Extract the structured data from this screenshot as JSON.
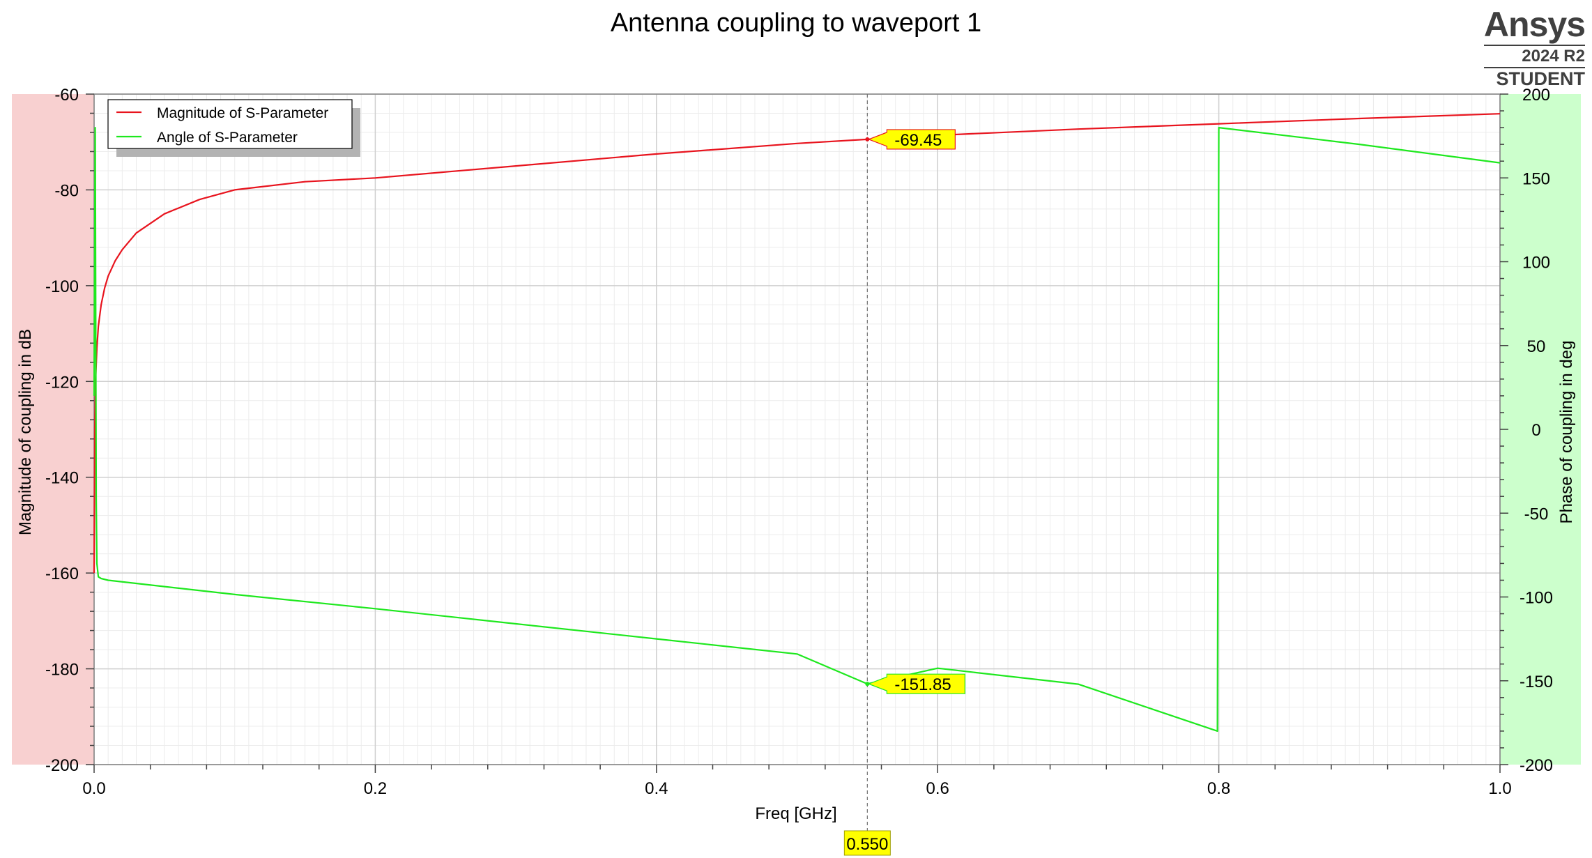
{
  "brand": {
    "name": "Ansys",
    "version": "2024 R2",
    "edition": "STUDENT"
  },
  "colors": {
    "magnitude": "#e8141e",
    "angle": "#1ee81e",
    "left_axis_bg": "#f8d0d0",
    "right_axis_bg": "#ccffcc",
    "marker_bg": "#ffff00"
  },
  "chart_data": {
    "type": "line",
    "title": "Antenna coupling to waveport 1",
    "xlabel": "Freq [GHz]",
    "ylabel_left": "Magnitude of coupling in dB",
    "ylabel_right": "Phase of coupling in deg",
    "xlim": [
      0.0,
      1.0
    ],
    "ylim_left": [
      -200,
      -60
    ],
    "ylim_right": [
      -200,
      200
    ],
    "xticks": [
      "0.0",
      "0.2",
      "0.4",
      "0.6",
      "0.8",
      "1.0"
    ],
    "yticks_left": [
      "-60",
      "-80",
      "-100",
      "-120",
      "-140",
      "-160",
      "-180",
      "-200"
    ],
    "yticks_right": [
      "200",
      "150",
      "100",
      "50",
      "0",
      "-50",
      "-100",
      "-150",
      "-200"
    ],
    "grid": true,
    "legend_position": "top-left",
    "series": [
      {
        "name": "Magnitude of S-Parameter",
        "axis": "left",
        "x": [
          0.0,
          0.0005,
          0.001,
          0.002,
          0.003,
          0.005,
          0.0075,
          0.01,
          0.015,
          0.02,
          0.03,
          0.05,
          0.075,
          0.1,
          0.15,
          0.2,
          0.3,
          0.4,
          0.5,
          0.55,
          0.6,
          0.7,
          0.8,
          0.9,
          1.0
        ],
        "y": [
          -160,
          -130,
          -120,
          -113,
          -108.5,
          -104,
          -100.5,
          -98,
          -94.8,
          -92.5,
          -89,
          -85,
          -82,
          -80,
          -78.3,
          -77.5,
          -75,
          -72.5,
          -70.3,
          -69.45,
          -68.6,
          -67.3,
          -66.2,
          -65.1,
          -64.1
        ]
      },
      {
        "name": "Angle of S-Parameter",
        "axis": "right",
        "x": [
          0.0,
          0.0008,
          0.0015,
          0.002,
          0.003,
          0.005,
          0.01,
          0.1,
          0.2,
          0.3,
          0.4,
          0.5,
          0.55,
          0.6,
          0.7,
          0.799,
          0.8,
          0.9,
          1.0
        ],
        "y": [
          20,
          180,
          -40,
          -80,
          -88,
          -89,
          -90,
          -98.5,
          -107,
          -116,
          -125,
          -134,
          -151.85,
          -142.5,
          -152,
          -180,
          180,
          170,
          159
        ]
      }
    ],
    "markers": [
      {
        "x_label": "0.550",
        "x": 0.55
      },
      {
        "label": "-69.45",
        "series": "Magnitude of S-Parameter",
        "x": 0.55,
        "y": -69.45
      },
      {
        "label": "-151.85",
        "series": "Angle of S-Parameter",
        "x": 0.55,
        "y": -151.85
      }
    ]
  }
}
